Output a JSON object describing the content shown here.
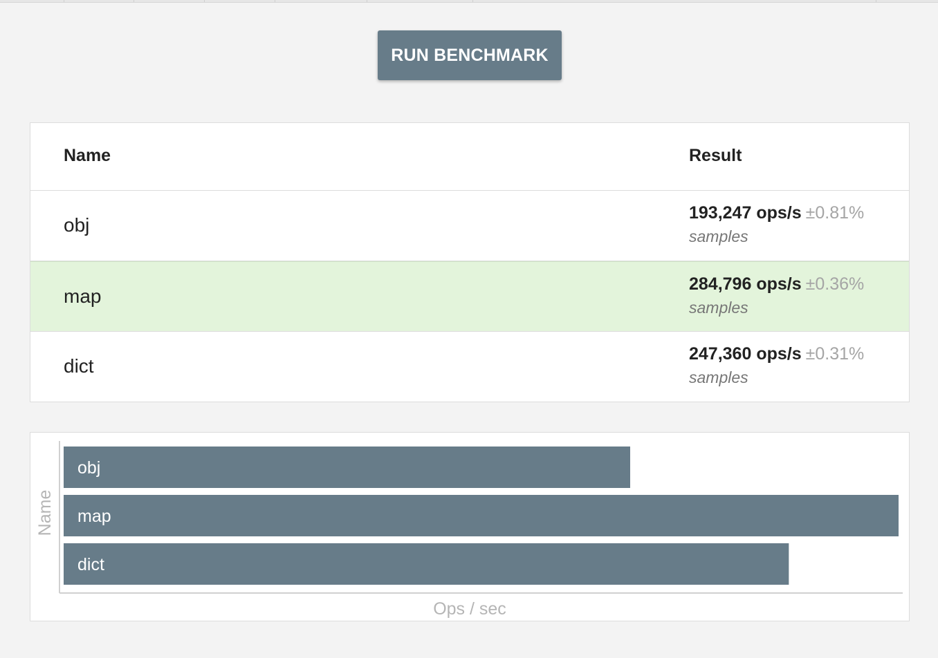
{
  "toolbar": {
    "run_label": "RUN BENCHMARK"
  },
  "table": {
    "headers": {
      "name": "Name",
      "result": "Result"
    },
    "rows": [
      {
        "name": "obj",
        "ops": "193,247 ops/s",
        "rme": "±0.81%",
        "samples": "samples",
        "fastest": false
      },
      {
        "name": "map",
        "ops": "284,796 ops/s",
        "rme": "±0.36%",
        "samples": "samples",
        "fastest": true
      },
      {
        "name": "dict",
        "ops": "247,360 ops/s",
        "rme": "±0.31%",
        "samples": "samples",
        "fastest": false
      }
    ]
  },
  "colors": {
    "accent": "#677c89",
    "fastest_row": "#e3f4db"
  },
  "chart_data": {
    "type": "bar",
    "orientation": "horizontal",
    "categories": [
      "obj",
      "map",
      "dict"
    ],
    "values": [
      193247,
      284796,
      247360
    ],
    "xlabel": "Ops / sec",
    "ylabel": "Name",
    "bar_color": "#677c89"
  }
}
